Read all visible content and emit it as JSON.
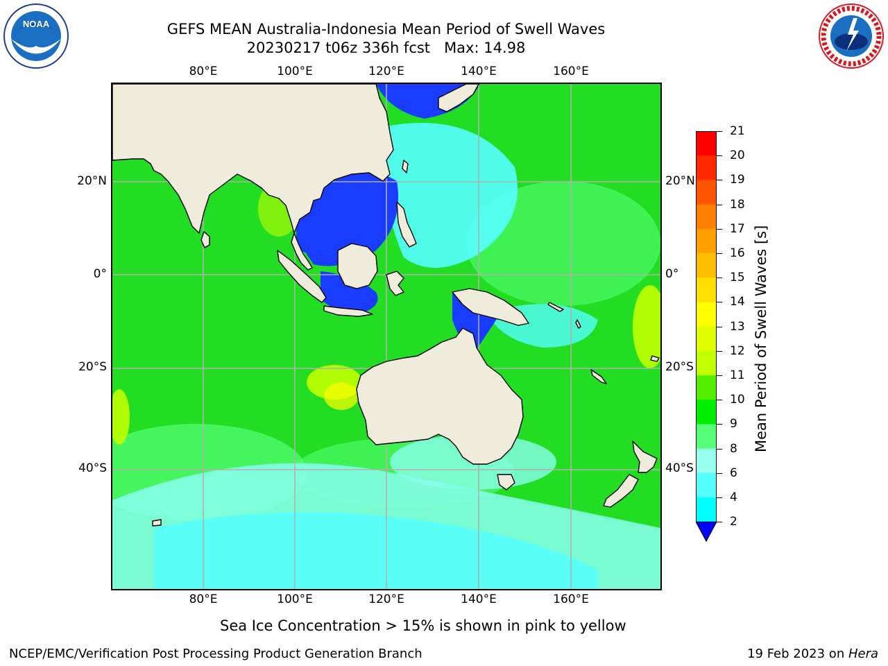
{
  "header": {
    "title_line1": "GEFS MEAN Australia-Indonesia Mean Period of Swell Waves",
    "title_line2": "20230217 t06z 336h fcst   Max: 14.98"
  },
  "logos": {
    "left": {
      "name": "noaa-logo",
      "text": "NOAA"
    },
    "right": {
      "name": "nws-logo",
      "text": "NATIONAL WEATHER SERVICE"
    }
  },
  "map": {
    "lon_labels": [
      "80°E",
      "100°E",
      "120°E",
      "140°E",
      "160°E"
    ],
    "lat_labels_left": [
      "20°N",
      "0°",
      "20°S",
      "40°S"
    ],
    "lat_labels_right": [
      "20°N",
      "0°",
      "20°S",
      "40°S"
    ],
    "land_color": "#efecdc",
    "grid_color": "#b0b0b0"
  },
  "colorbar": {
    "label": "Mean Period of Swell Waves [s]",
    "ticks": [
      "21",
      "20",
      "19",
      "18",
      "17",
      "16",
      "15",
      "14",
      "13",
      "12",
      "11",
      "10",
      "9",
      "8",
      "6",
      "4",
      "2"
    ],
    "colors": [
      "#ff0000",
      "#ff2a00",
      "#ff5500",
      "#ff7f00",
      "#ff9f00",
      "#ffbf00",
      "#ffdf00",
      "#ffff00",
      "#dfff00",
      "#bfff00",
      "#55ee00",
      "#00ee00",
      "#55ff77",
      "#99ffee",
      "#55ffff",
      "#00ffff",
      "#00ddff",
      "#0077ff",
      "#0000ff"
    ]
  },
  "notes": {
    "sea_ice": "Sea Ice Concentration > 15% is shown in pink to yellow"
  },
  "footer": {
    "left": "NCEP/EMC/Verification Post Processing Product Generation Branch",
    "right_prefix": "19 Feb 2023 on ",
    "right_host": "Hera"
  }
}
